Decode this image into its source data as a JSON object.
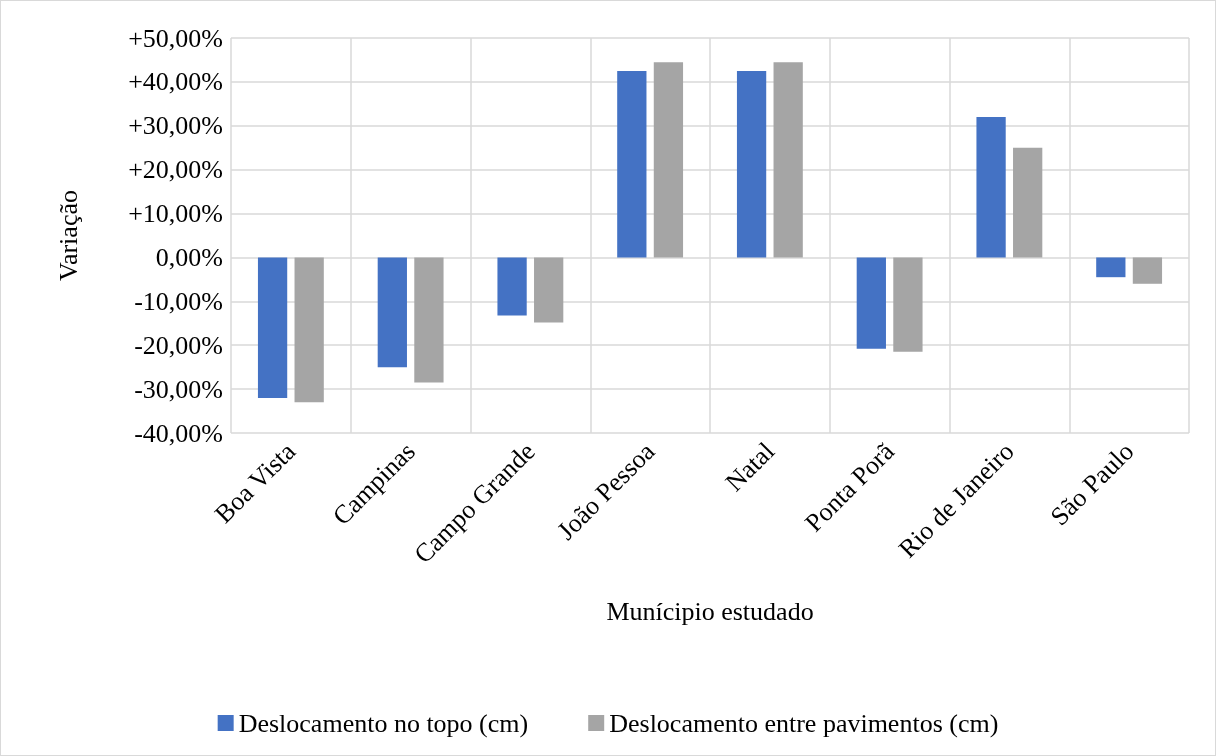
{
  "chart_data": {
    "type": "bar",
    "xlabel": "Munícipio estudado",
    "ylabel": "Variação",
    "categories": [
      "Boa Vista",
      "Campinas",
      "Campo Grande",
      "João Pessoa",
      "Natal",
      "Ponta Porã",
      "Rio de Janeiro",
      "São Paulo"
    ],
    "series": [
      {
        "name": "Deslocamento no topo (cm)",
        "color": "#4472c4",
        "values": [
          -32,
          -25,
          -13.2,
          42.5,
          42.5,
          -20.8,
          32,
          -4.5
        ]
      },
      {
        "name": "Deslocamento entre pavimentos (cm)",
        "color": "#a5a5a5",
        "values": [
          -33,
          -28.5,
          -14.8,
          44.5,
          44.5,
          -21.5,
          25,
          -6
        ]
      }
    ],
    "ylim": [
      -40,
      50
    ],
    "yticks": [
      {
        "value": -40,
        "label": "-40,00%"
      },
      {
        "value": -30,
        "label": "-30,00%"
      },
      {
        "value": -20,
        "label": "-20,00%"
      },
      {
        "value": -10,
        "label": "-10,00%"
      },
      {
        "value": 0,
        "label": "0,00%"
      },
      {
        "value": 10,
        "label": "+10,00%"
      },
      {
        "value": 20,
        "label": "+20,00%"
      },
      {
        "value": 30,
        "label": "+30,00%"
      },
      {
        "value": 40,
        "label": "+40,00%"
      },
      {
        "value": 50,
        "label": "+50,00%"
      }
    ],
    "grid": true,
    "legend": "bottom"
  }
}
